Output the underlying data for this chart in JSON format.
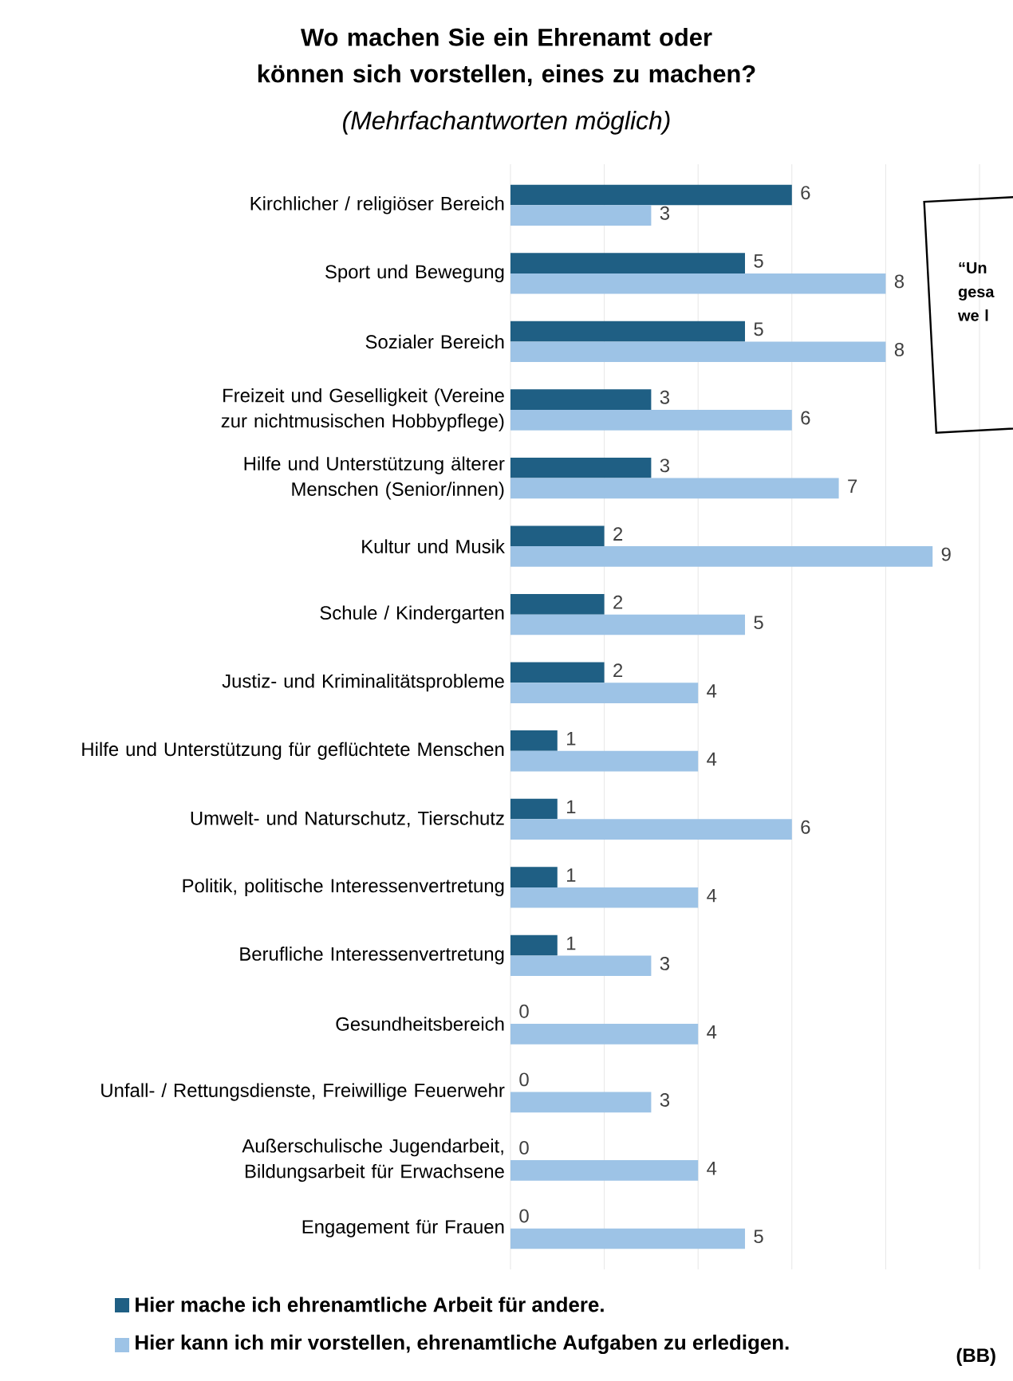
{
  "chart_data": {
    "type": "bar",
    "orientation": "horizontal",
    "title": "Wo machen Sie ein Ehrenamt oder können sich vorstellen, eines zu machen?",
    "subtitle": "(Mehrfachantworten möglich)",
    "categories": [
      "Kirchlicher / religiöser Bereich",
      "Sport und Bewegung",
      "Sozialer Bereich",
      "Freizeit und Geselligkeit (Vereine zur nichtmusischen Hobbypflege)",
      "Hilfe und Unterstützung älterer Menschen (Senior/innen)",
      "Kultur und Musik",
      "Schule / Kindergarten",
      "Justiz- und Kriminalitätsprobleme",
      "Hilfe und Unterstützung für geflüchtete Menschen",
      "Umwelt- und Naturschutz, Tierschutz",
      "Politik, politische Interessenvertretung",
      "Berufliche Interessenvertretung",
      "Gesundheitsbereich",
      "Unfall- / Rettungsdienste, Freiwillige Feuerwehr",
      "Außerschulische Jugendarbeit, Bildungsarbeit für Erwachsene",
      "Engagement für Frauen"
    ],
    "series": [
      {
        "name": "Hier  mache  ich ehrenamtliche Arbeit für andere.",
        "color": "#1f5f84",
        "values": [
          6,
          5,
          5,
          3,
          3,
          2,
          2,
          2,
          1,
          1,
          1,
          1,
          0,
          0,
          0,
          0
        ]
      },
      {
        "name": "Hier kann ich mir  vorstellen, ehrenamtliche Aufgaben zu erledigen.",
        "color": "#9dc3e6",
        "values": [
          3,
          8,
          8,
          6,
          7,
          9,
          5,
          4,
          4,
          6,
          4,
          3,
          4,
          3,
          4,
          5
        ]
      }
    ],
    "xlim": [
      0,
      10
    ],
    "xticks": [
      {
        "value": 0,
        "label": null
      },
      {
        "value": 2,
        "label": null
      },
      {
        "value": 4,
        "label": null
      },
      {
        "value": 6,
        "label": null
      },
      {
        "value": 8,
        "label": null
      },
      {
        "value": 10,
        "label": null
      }
    ],
    "tick_labels": "y",
    "grid": "x",
    "data_labels": true,
    "legend": "bottom",
    "annotations": [
      "“Un gesa we l",
      "(BB)"
    ]
  }
}
